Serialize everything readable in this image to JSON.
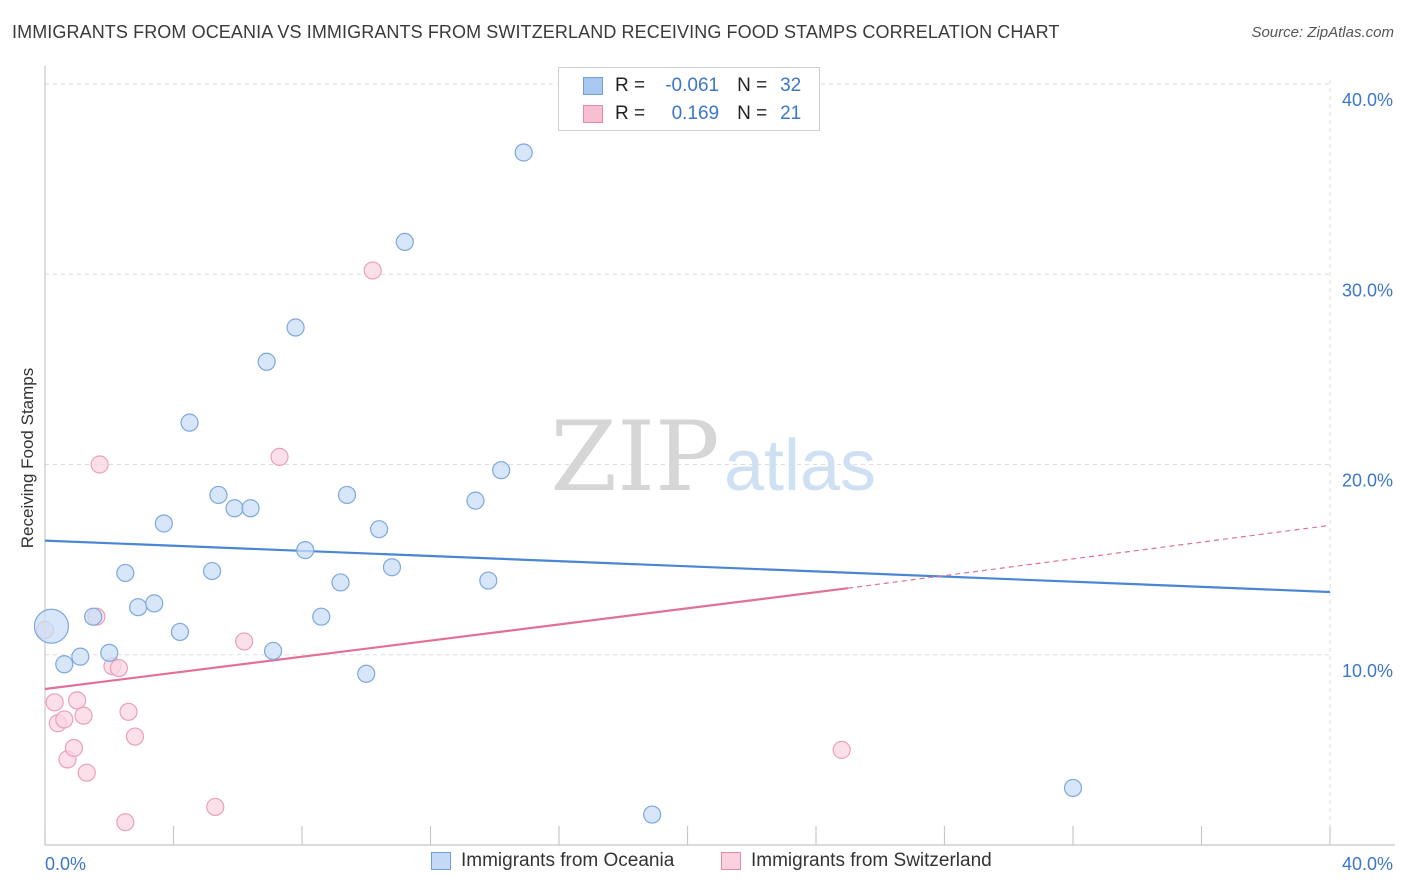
{
  "header": {
    "title": "IMMIGRANTS FROM OCEANIA VS IMMIGRANTS FROM SWITZERLAND RECEIVING FOOD STAMPS CORRELATION CHART",
    "source": "Source: ZipAtlas.com"
  },
  "watermark": {
    "zip": "ZIP",
    "atlas": "atlas"
  },
  "stats": {
    "rows": [
      {
        "r_label": "R =",
        "r_value": "-0.061",
        "n_label": "N =",
        "n_value": "32",
        "color": "#a9c8f0",
        "border": "#6f9fd8"
      },
      {
        "r_label": "R =",
        "r_value": "0.169",
        "n_label": "N =",
        "n_value": "21",
        "color": "#f7bfd0",
        "border": "#e58aa8"
      }
    ]
  },
  "legend": {
    "items": [
      {
        "label": "Immigrants from Oceania",
        "color": "#c3d9f5",
        "border": "#6f9fd8"
      },
      {
        "label": "Immigrants from Switzerland",
        "color": "#fad1de",
        "border": "#e58aa8"
      }
    ]
  },
  "chart_data": {
    "type": "scatter",
    "title": "IMMIGRANTS FROM OCEANIA VS IMMIGRANTS FROM SWITZERLAND RECEIVING FOOD STAMPS CORRELATION CHART",
    "xlabel": "",
    "ylabel": "Receiving Food Stamps",
    "xlim": [
      0,
      40
    ],
    "ylim": [
      0,
      40
    ],
    "x_tick_labels": [
      "0.0%",
      "40.0%"
    ],
    "y_ticks": [
      10,
      20,
      30,
      40
    ],
    "y_tick_labels": [
      "10.0%",
      "20.0%",
      "30.0%",
      "40.0%"
    ],
    "grid": true,
    "series": [
      {
        "name": "Immigrants from Oceania",
        "color": "#4a86d4",
        "fill": "#c9ddf6",
        "stroke": "#7ea8de",
        "points": [
          [
            0.2,
            11.5,
            2
          ],
          [
            0.6,
            9.5,
            1
          ],
          [
            1.1,
            9.9,
            1
          ],
          [
            1.5,
            12.0,
            1
          ],
          [
            2.0,
            10.1,
            1
          ],
          [
            2.5,
            14.3,
            1
          ],
          [
            2.9,
            12.5,
            1
          ],
          [
            3.4,
            12.7,
            1
          ],
          [
            3.7,
            16.9,
            1
          ],
          [
            4.2,
            11.2,
            1
          ],
          [
            4.5,
            22.2,
            1
          ],
          [
            5.2,
            14.4,
            1
          ],
          [
            5.4,
            18.4,
            1
          ],
          [
            5.9,
            17.7,
            1
          ],
          [
            6.4,
            17.7,
            1
          ],
          [
            6.9,
            25.4,
            1
          ],
          [
            7.1,
            10.2,
            1
          ],
          [
            7.8,
            27.2,
            1
          ],
          [
            8.1,
            15.5,
            1
          ],
          [
            8.6,
            12.0,
            1
          ],
          [
            9.2,
            13.8,
            1
          ],
          [
            9.4,
            18.4,
            1
          ],
          [
            10.0,
            9.0,
            1
          ],
          [
            10.4,
            16.6,
            1
          ],
          [
            10.8,
            14.6,
            1
          ],
          [
            11.2,
            31.7,
            1
          ],
          [
            13.4,
            18.1,
            1
          ],
          [
            13.8,
            13.9,
            1
          ],
          [
            14.2,
            19.7,
            1
          ],
          [
            14.9,
            36.4,
            1
          ],
          [
            18.9,
            1.6,
            1
          ],
          [
            32.0,
            3.0,
            1
          ]
        ],
        "trend": {
          "x0": 0,
          "y0": 16.0,
          "x1": 40,
          "y1": 13.3
        }
      },
      {
        "name": "Immigrants from Switzerland",
        "color": "#e0709a",
        "fill": "#fbd5e1",
        "stroke": "#eba0b8",
        "points": [
          [
            0.0,
            11.3,
            1
          ],
          [
            0.3,
            7.5,
            1
          ],
          [
            0.4,
            6.4,
            1
          ],
          [
            0.6,
            6.6,
            1
          ],
          [
            0.7,
            4.5,
            1
          ],
          [
            0.9,
            5.1,
            1
          ],
          [
            1.0,
            7.6,
            1
          ],
          [
            1.2,
            6.8,
            1
          ],
          [
            1.3,
            3.8,
            1
          ],
          [
            1.6,
            12.0,
            1
          ],
          [
            1.7,
            20.0,
            1
          ],
          [
            2.1,
            9.4,
            1
          ],
          [
            2.3,
            9.3,
            1
          ],
          [
            2.5,
            1.2,
            1
          ],
          [
            2.6,
            7.0,
            1
          ],
          [
            2.8,
            5.7,
            1
          ],
          [
            5.3,
            2.0,
            1
          ],
          [
            6.2,
            10.7,
            1
          ],
          [
            7.3,
            20.4,
            1
          ],
          [
            10.2,
            30.2,
            1
          ],
          [
            24.8,
            5.0,
            1
          ]
        ],
        "trend": {
          "x0": 0,
          "y0": 8.2,
          "x1": 25,
          "y1": 13.5,
          "dash_to_x": 40,
          "dash_to_y": 16.8
        }
      }
    ],
    "stats": [
      {
        "series": "Immigrants from Oceania",
        "R": -0.061,
        "N": 32
      },
      {
        "series": "Immigrants from Switzerland",
        "R": 0.169,
        "N": 21
      }
    ]
  }
}
